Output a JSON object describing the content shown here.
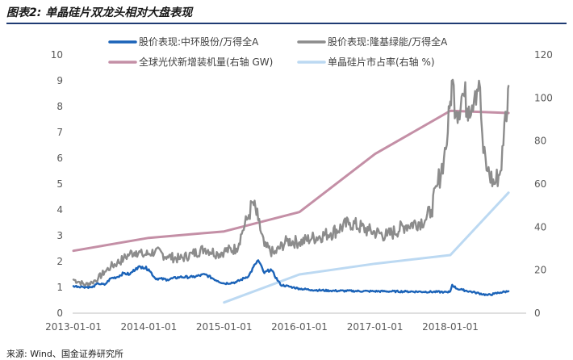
{
  "header": {
    "title": "图表2: 单晶硅片双龙头相对大盘表现",
    "source": "来源: Wind、国金证券研究所"
  },
  "chart_data": {
    "type": "line",
    "title": "",
    "xlabel": "",
    "ylabel": "",
    "x_ticks": [
      "2013-01-01",
      "2014-01-01",
      "2015-01-01",
      "2016-01-01",
      "2017-01-01",
      "2018-01-01"
    ],
    "y_left": {
      "ticks": [
        0,
        1,
        2,
        3,
        4,
        5,
        6,
        7,
        8,
        9,
        10
      ],
      "lim": [
        0,
        10
      ]
    },
    "y_right": {
      "ticks": [
        0,
        20,
        40,
        60,
        80,
        100,
        120
      ],
      "lim": [
        0,
        120
      ]
    },
    "grid": false,
    "legend_position": "top",
    "series": [
      {
        "name": "股价表现:中环股份/万得全A",
        "axis": "left",
        "color": "#1b63b8",
        "points": [
          [
            "2013-01-01",
            1.05
          ],
          [
            "2013-02-15",
            1.02
          ],
          [
            "2013-04-01",
            1.0
          ],
          [
            "2013-05-01",
            1.15
          ],
          [
            "2013-06-01",
            1.1
          ],
          [
            "2013-07-01",
            1.35
          ],
          [
            "2013-08-01",
            1.4
          ],
          [
            "2013-09-01",
            1.55
          ],
          [
            "2013-10-01",
            1.5
          ],
          [
            "2013-11-01",
            1.75
          ],
          [
            "2013-12-01",
            1.8
          ],
          [
            "2014-01-01",
            1.7
          ],
          [
            "2014-02-01",
            1.35
          ],
          [
            "2014-04-01",
            1.3
          ],
          [
            "2014-06-01",
            1.4
          ],
          [
            "2014-08-01",
            1.4
          ],
          [
            "2014-10-01",
            1.5
          ],
          [
            "2014-12-01",
            1.25
          ],
          [
            "2015-01-01",
            1.15
          ],
          [
            "2015-03-01",
            1.2
          ],
          [
            "2015-05-01",
            1.45
          ],
          [
            "2015-06-01",
            1.9
          ],
          [
            "2015-06-15",
            2.05
          ],
          [
            "2015-07-15",
            1.55
          ],
          [
            "2015-08-15",
            1.7
          ],
          [
            "2015-10-01",
            1.1
          ],
          [
            "2015-12-01",
            1.0
          ],
          [
            "2016-01-01",
            0.95
          ],
          [
            "2016-03-01",
            0.9
          ],
          [
            "2016-06-01",
            0.87
          ],
          [
            "2016-12-01",
            0.85
          ],
          [
            "2017-06-01",
            0.84
          ],
          [
            "2017-12-01",
            0.82
          ],
          [
            "2017-12-20",
            0.8
          ],
          [
            "2018-01-01",
            0.85
          ],
          [
            "2018-01-10",
            1.1
          ],
          [
            "2018-02-01",
            0.95
          ],
          [
            "2018-03-01",
            0.9
          ],
          [
            "2018-05-01",
            0.8
          ],
          [
            "2018-07-01",
            0.7
          ],
          [
            "2018-08-01",
            0.75
          ],
          [
            "2018-09-01",
            0.8
          ],
          [
            "2018-10-10",
            0.85
          ]
        ]
      },
      {
        "name": "股价表现:隆基绿能/万得全A",
        "axis": "left",
        "color": "#8c8c8c",
        "points": [
          [
            "2013-01-01",
            1.3
          ],
          [
            "2013-02-01",
            1.2
          ],
          [
            "2013-03-01",
            1.1
          ],
          [
            "2013-04-01",
            1.2
          ],
          [
            "2013-05-01",
            1.35
          ],
          [
            "2013-06-01",
            1.6
          ],
          [
            "2013-07-01",
            1.8
          ],
          [
            "2013-08-01",
            1.95
          ],
          [
            "2013-09-01",
            2.1
          ],
          [
            "2013-10-01",
            2.3
          ],
          [
            "2013-11-01",
            2.4
          ],
          [
            "2013-12-01",
            2.25
          ],
          [
            "2014-01-01",
            2.3
          ],
          [
            "2014-02-01",
            2.4
          ],
          [
            "2014-04-01",
            2.2
          ],
          [
            "2014-06-01",
            2.1
          ],
          [
            "2014-08-01",
            2.3
          ],
          [
            "2014-10-01",
            2.5
          ],
          [
            "2014-12-01",
            2.3
          ],
          [
            "2015-01-01",
            2.4
          ],
          [
            "2015-03-01",
            2.5
          ],
          [
            "2015-04-01",
            3.2
          ],
          [
            "2015-05-01",
            3.8
          ],
          [
            "2015-05-20",
            4.3
          ],
          [
            "2015-06-15",
            3.6
          ],
          [
            "2015-07-15",
            2.6
          ],
          [
            "2015-09-01",
            2.3
          ],
          [
            "2015-11-01",
            2.8
          ],
          [
            "2016-01-01",
            2.75
          ],
          [
            "2016-03-01",
            2.9
          ],
          [
            "2016-06-01",
            3.1
          ],
          [
            "2016-09-01",
            3.5
          ],
          [
            "2016-12-01",
            3.2
          ],
          [
            "2017-03-01",
            3.0
          ],
          [
            "2017-06-01",
            3.4
          ],
          [
            "2017-09-01",
            3.6
          ],
          [
            "2017-10-01",
            4.0
          ],
          [
            "2017-11-01",
            5.0
          ],
          [
            "2017-12-01",
            6.0
          ],
          [
            "2017-12-20",
            7.0
          ],
          [
            "2018-01-01",
            8.2
          ],
          [
            "2018-01-08",
            9.0
          ],
          [
            "2018-02-01",
            7.8
          ],
          [
            "2018-03-01",
            8.5
          ],
          [
            "2018-04-01",
            8.0
          ],
          [
            "2018-05-01",
            8.6
          ],
          [
            "2018-05-20",
            9.0
          ],
          [
            "2018-06-10",
            6.2
          ],
          [
            "2018-07-01",
            5.5
          ],
          [
            "2018-08-01",
            5.0
          ],
          [
            "2018-09-01",
            5.5
          ],
          [
            "2018-09-15",
            6.5
          ],
          [
            "2018-09-25",
            7.8
          ],
          [
            "2018-10-05",
            7.9
          ],
          [
            "2018-10-10",
            8.8
          ]
        ]
      },
      {
        "name": "全球光伏新增装机量(右轴 GW)",
        "axis": "right",
        "color": "#c48fa6",
        "points": [
          [
            "2013-01-01",
            29
          ],
          [
            "2014-01-01",
            35
          ],
          [
            "2015-01-01",
            38
          ],
          [
            "2016-01-01",
            47
          ],
          [
            "2017-01-01",
            74
          ],
          [
            "2018-01-01",
            94
          ],
          [
            "2018-10-10",
            93
          ]
        ]
      },
      {
        "name": "单晶硅片市占率(右轴 %)",
        "axis": "right",
        "color": "#bcd9f2",
        "points": [
          [
            "2015-01-01",
            5
          ],
          [
            "2016-01-01",
            18
          ],
          [
            "2017-01-01",
            23
          ],
          [
            "2018-01-01",
            27
          ],
          [
            "2018-10-10",
            56
          ]
        ]
      }
    ]
  }
}
